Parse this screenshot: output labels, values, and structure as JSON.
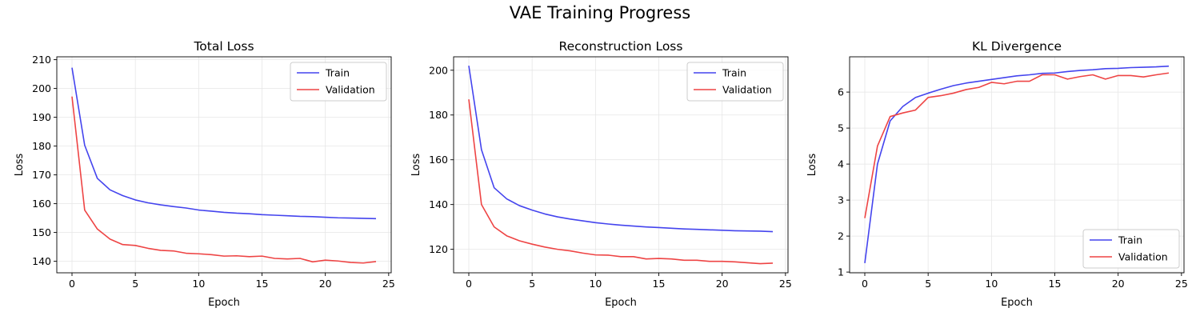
{
  "figure_title": "VAE Training Progress",
  "chart_data": [
    {
      "type": "line",
      "title": "Total Loss",
      "xlabel": "Epoch",
      "ylabel": "Loss",
      "xlim": [
        -1.2,
        25.2
      ],
      "ylim": [
        136,
        211
      ],
      "xticks": [
        0,
        5,
        10,
        15,
        20,
        25
      ],
      "yticks": [
        140,
        150,
        160,
        170,
        180,
        190,
        200,
        210
      ],
      "grid": true,
      "legend": "top-right",
      "x": [
        0,
        1,
        2,
        3,
        4,
        5,
        6,
        7,
        8,
        9,
        10,
        11,
        12,
        13,
        14,
        15,
        16,
        17,
        18,
        19,
        20,
        21,
        22,
        23,
        24
      ],
      "series": [
        {
          "name": "Train",
          "color": "#4444ee",
          "values": [
            207.2,
            180.3,
            168.8,
            164.8,
            162.8,
            161.3,
            160.3,
            159.6,
            159.0,
            158.5,
            157.8,
            157.4,
            157.0,
            156.7,
            156.5,
            156.2,
            156.0,
            155.8,
            155.6,
            155.5,
            155.3,
            155.1,
            155.0,
            154.9,
            154.8
          ]
        },
        {
          "name": "Validation",
          "color": "#ee4444",
          "values": [
            197.2,
            157.8,
            151.2,
            147.7,
            145.8,
            145.5,
            144.5,
            143.8,
            143.6,
            142.8,
            142.6,
            142.3,
            141.8,
            141.9,
            141.6,
            141.8,
            141.0,
            140.8,
            141.0,
            139.8,
            140.4,
            140.1,
            139.6,
            139.4,
            139.9
          ]
        }
      ]
    },
    {
      "type": "line",
      "title": "Reconstruction Loss",
      "xlabel": "Epoch",
      "ylabel": "Loss",
      "xlim": [
        -1.2,
        25.2
      ],
      "ylim": [
        109.5,
        206
      ],
      "xticks": [
        0,
        5,
        10,
        15,
        20,
        25
      ],
      "yticks": [
        120,
        140,
        160,
        180,
        200
      ],
      "grid": true,
      "legend": "top-right",
      "x": [
        0,
        1,
        2,
        3,
        4,
        5,
        6,
        7,
        8,
        9,
        10,
        11,
        12,
        13,
        14,
        15,
        16,
        17,
        18,
        19,
        20,
        21,
        22,
        23,
        24
      ],
      "series": [
        {
          "name": "Train",
          "color": "#4444ee",
          "values": [
            202.0,
            164.5,
            147.5,
            142.5,
            139.5,
            137.5,
            135.8,
            134.5,
            133.5,
            132.7,
            131.9,
            131.3,
            130.8,
            130.4,
            130.0,
            129.7,
            129.4,
            129.1,
            128.9,
            128.7,
            128.5,
            128.3,
            128.2,
            128.1,
            127.9
          ]
        },
        {
          "name": "Validation",
          "color": "#ee4444",
          "values": [
            187.0,
            140.0,
            130.0,
            126.0,
            123.8,
            122.3,
            121.0,
            120.0,
            119.3,
            118.3,
            117.5,
            117.4,
            116.7,
            116.7,
            115.7,
            115.9,
            115.7,
            115.1,
            115.1,
            114.6,
            114.6,
            114.4,
            114.0,
            113.6,
            113.8
          ]
        }
      ]
    },
    {
      "type": "line",
      "title": "KL Divergence",
      "xlabel": "Epoch",
      "ylabel": "Loss",
      "xlim": [
        -1.2,
        25.2
      ],
      "ylim": [
        0.98,
        6.98
      ],
      "xticks": [
        0,
        5,
        10,
        15,
        20,
        25
      ],
      "yticks": [
        1,
        2,
        3,
        4,
        5,
        6
      ],
      "grid": true,
      "legend": "bottom-right",
      "x": [
        0,
        1,
        2,
        3,
        4,
        5,
        6,
        7,
        8,
        9,
        10,
        11,
        12,
        13,
        14,
        15,
        16,
        17,
        18,
        19,
        20,
        21,
        22,
        23,
        24
      ],
      "series": [
        {
          "name": "Train",
          "color": "#4444ee",
          "values": [
            1.25,
            4.0,
            5.2,
            5.6,
            5.85,
            5.97,
            6.08,
            6.18,
            6.25,
            6.3,
            6.35,
            6.4,
            6.45,
            6.48,
            6.52,
            6.53,
            6.57,
            6.6,
            6.62,
            6.65,
            6.66,
            6.68,
            6.69,
            6.7,
            6.72
          ]
        },
        {
          "name": "Validation",
          "color": "#ee4444",
          "values": [
            2.5,
            4.5,
            5.32,
            5.42,
            5.5,
            5.85,
            5.9,
            5.97,
            6.07,
            6.13,
            6.27,
            6.23,
            6.3,
            6.3,
            6.48,
            6.48,
            6.36,
            6.43,
            6.48,
            6.36,
            6.46,
            6.46,
            6.42,
            6.48,
            6.53
          ]
        }
      ]
    }
  ]
}
